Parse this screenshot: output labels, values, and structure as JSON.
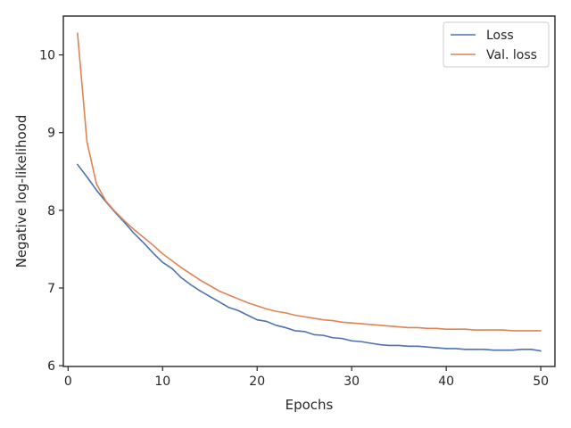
{
  "chart_data": {
    "type": "line",
    "title": "",
    "xlabel": "Epochs",
    "ylabel": "Negative log-likelihood",
    "xlim": [
      -0.5,
      51.5
    ],
    "ylim": [
      5.99,
      10.5
    ],
    "xticks": [
      0,
      10,
      20,
      30,
      40,
      50
    ],
    "yticks": [
      6,
      7,
      8,
      9,
      10
    ],
    "grid": false,
    "legend_position": "top-right",
    "x": [
      1,
      2,
      3,
      4,
      5,
      6,
      7,
      8,
      9,
      10,
      11,
      12,
      13,
      14,
      15,
      16,
      17,
      18,
      19,
      20,
      21,
      22,
      23,
      24,
      25,
      26,
      27,
      28,
      29,
      30,
      31,
      32,
      33,
      34,
      35,
      36,
      37,
      38,
      39,
      40,
      41,
      42,
      43,
      44,
      45,
      46,
      47,
      48,
      49,
      50
    ],
    "series": [
      {
        "name": "Loss",
        "color": "#4c72b0",
        "values": [
          8.59,
          8.43,
          8.26,
          8.11,
          7.97,
          7.84,
          7.7,
          7.58,
          7.45,
          7.33,
          7.25,
          7.13,
          7.04,
          6.96,
          6.89,
          6.82,
          6.75,
          6.71,
          6.65,
          6.59,
          6.57,
          6.52,
          6.49,
          6.45,
          6.44,
          6.4,
          6.39,
          6.36,
          6.35,
          6.32,
          6.31,
          6.29,
          6.27,
          6.26,
          6.26,
          6.25,
          6.25,
          6.24,
          6.23,
          6.22,
          6.22,
          6.21,
          6.21,
          6.21,
          6.2,
          6.2,
          6.2,
          6.21,
          6.21,
          6.19
        ]
      },
      {
        "name": "Val. loss",
        "color": "#dd8452",
        "values": [
          10.28,
          8.88,
          8.34,
          8.12,
          7.98,
          7.86,
          7.75,
          7.65,
          7.55,
          7.44,
          7.35,
          7.26,
          7.18,
          7.1,
          7.03,
          6.96,
          6.91,
          6.86,
          6.81,
          6.77,
          6.73,
          6.7,
          6.68,
          6.65,
          6.63,
          6.61,
          6.59,
          6.58,
          6.56,
          6.55,
          6.54,
          6.53,
          6.52,
          6.51,
          6.5,
          6.49,
          6.49,
          6.48,
          6.48,
          6.47,
          6.47,
          6.47,
          6.46,
          6.46,
          6.46,
          6.46,
          6.45,
          6.45,
          6.45,
          6.45
        ]
      }
    ]
  }
}
